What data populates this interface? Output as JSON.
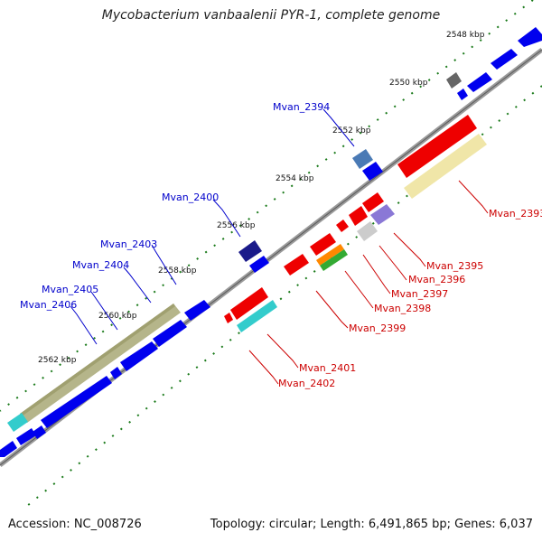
{
  "title": "Mycobacterium vanbaalenii PYR-1, complete genome",
  "footer": {
    "accession": "Accession: NC_008726",
    "summary": "Topology: circular; Length: 6,491,865 bp; Genes: 6,037"
  },
  "ticks": [
    "2548 kbp",
    "2550 kbp",
    "2552 kbp",
    "2554 kbp",
    "2556 kbp",
    "2558 kbp",
    "2560 kbp",
    "2562 kbp"
  ],
  "gene_labels_forward": [
    "Mvan_2394",
    "Mvan_2400",
    "Mvan_2403",
    "Mvan_2404",
    "Mvan_2405",
    "Mvan_2406"
  ],
  "gene_labels_reverse": [
    "Mvan_2393",
    "Mvan_2395",
    "Mvan_2396",
    "Mvan_2397",
    "Mvan_2398",
    "Mvan_2399",
    "Mvan_2401",
    "Mvan_2402"
  ],
  "colors": {
    "forward_label": "#0000cc",
    "reverse_label": "#cc0000",
    "forward_cds": "#0000ee",
    "reverse_cds": "#ee0000",
    "backbone": "#808080",
    "tick_dots": "#1a7a1a"
  }
}
